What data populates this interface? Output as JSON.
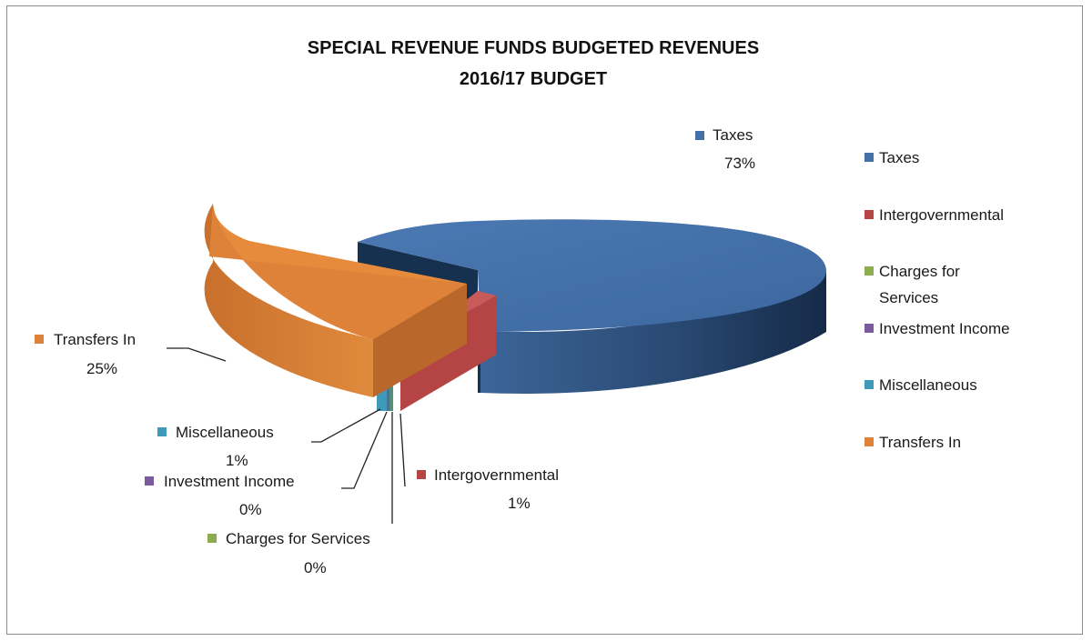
{
  "chart_data": {
    "type": "pie",
    "title": "SPECIAL REVENUE FUNDS BUDGETED REVENUES",
    "subtitle": "2016/17 BUDGET",
    "categories": [
      "Taxes",
      "Intergovernmental",
      "Charges for Services",
      "Investment Income",
      "Miscellaneous",
      "Transfers In"
    ],
    "values": [
      73,
      1,
      0,
      0,
      1,
      25
    ],
    "value_labels": [
      "73%",
      "1%",
      "0%",
      "0%",
      "1%",
      "25%"
    ],
    "colors": [
      "#4470a8",
      "#b54545",
      "#8cad4f",
      "#7a5b9e",
      "#3e9ab8",
      "#dd8238"
    ],
    "legend": {
      "position": "right",
      "entries": [
        "Taxes",
        "Intergovernmental",
        "Charges for",
        "Services",
        "Investment Income",
        "Miscellaneous",
        "Transfers In"
      ]
    },
    "style": "3d-exploded"
  }
}
